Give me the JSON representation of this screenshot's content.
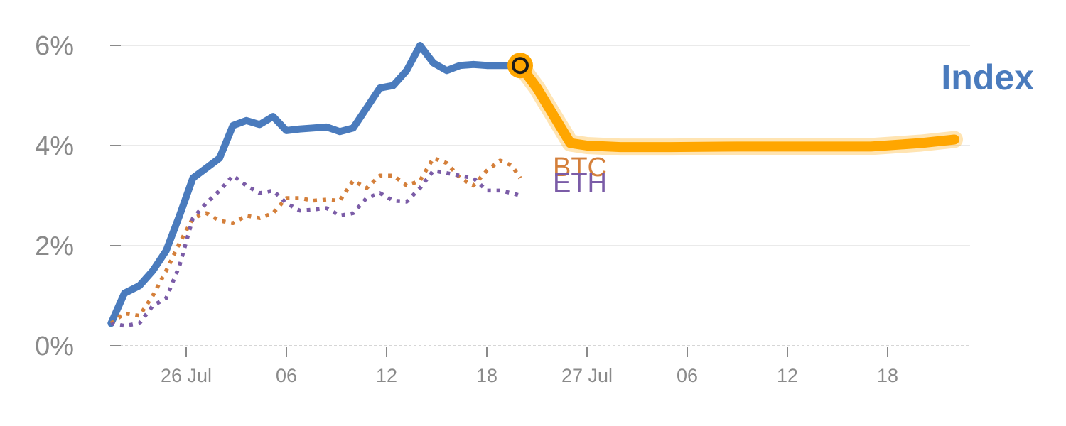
{
  "chart_data": {
    "type": "line",
    "title": "",
    "xlabel": "",
    "ylabel": "",
    "ylim": [
      0,
      6
    ],
    "y_unit": "%",
    "grid": "horizontal",
    "y_ticks": [
      {
        "value": 0,
        "label": "0%"
      },
      {
        "value": 2,
        "label": "2%"
      },
      {
        "value": 4,
        "label": "4%"
      },
      {
        "value": 6,
        "label": "6%"
      }
    ],
    "x_ticks": [
      {
        "x": 3,
        "label": "26 Jul"
      },
      {
        "x": 9,
        "label": "06"
      },
      {
        "x": 15,
        "label": "12"
      },
      {
        "x": 21,
        "label": "18"
      },
      {
        "x": 27,
        "label": "27 Jul"
      },
      {
        "x": 33,
        "label": "06"
      },
      {
        "x": 39,
        "label": "12"
      },
      {
        "x": 45,
        "label": "18"
      }
    ],
    "series": [
      {
        "name": "Index",
        "style": "solid",
        "color": "#4a7bbd",
        "x": [
          -1.5,
          -0.7,
          0.2,
          1.0,
          1.8,
          2.6,
          3.4,
          4.2,
          5.0,
          5.8,
          6.6,
          7.4,
          8.2,
          9.0,
          9.8,
          10.6,
          11.4,
          12.2,
          13.0,
          13.8,
          14.6,
          15.4,
          16.2,
          17.0,
          17.8,
          18.6,
          19.4,
          20.2,
          21.0,
          21.8,
          22.5,
          23.0
        ],
        "y": [
          0.45,
          1.05,
          1.2,
          1.5,
          1.9,
          2.6,
          3.35,
          3.55,
          3.75,
          4.4,
          4.5,
          4.42,
          4.58,
          4.3,
          4.33,
          4.35,
          4.37,
          4.28,
          4.35,
          4.75,
          5.15,
          5.2,
          5.5,
          6.0,
          5.65,
          5.5,
          5.6,
          5.62,
          5.6,
          5.6,
          5.6,
          5.6
        ]
      },
      {
        "name": "BTC",
        "style": "dotted",
        "color": "#d47f3a",
        "x": [
          -1.5,
          -0.7,
          0.2,
          1.0,
          1.8,
          2.6,
          3.4,
          4.2,
          5.0,
          5.8,
          6.6,
          7.4,
          8.2,
          9.0,
          9.8,
          10.6,
          11.4,
          12.2,
          13.0,
          13.8,
          14.6,
          15.4,
          16.2,
          17.0,
          17.8,
          18.6,
          19.4,
          20.2,
          21.0,
          21.8,
          22.5,
          23.0
        ],
        "y": [
          0.45,
          0.65,
          0.6,
          1.0,
          1.5,
          2.05,
          2.55,
          2.65,
          2.5,
          2.45,
          2.6,
          2.55,
          2.65,
          2.95,
          2.95,
          2.9,
          2.92,
          2.9,
          3.3,
          3.15,
          3.4,
          3.4,
          3.2,
          3.3,
          3.75,
          3.65,
          3.35,
          3.2,
          3.5,
          3.7,
          3.6,
          3.35
        ]
      },
      {
        "name": "ETH",
        "style": "dotted",
        "color": "#7b5ca7",
        "x": [
          -1.5,
          -0.7,
          0.2,
          1.0,
          1.8,
          2.6,
          3.4,
          4.2,
          5.0,
          5.8,
          6.6,
          7.4,
          8.2,
          9.0,
          9.8,
          10.6,
          11.4,
          12.2,
          13.0,
          13.8,
          14.6,
          15.4,
          16.2,
          17.0,
          17.8,
          18.6,
          19.4,
          20.2,
          21.0,
          21.8,
          22.5,
          23.0
        ],
        "y": [
          0.45,
          0.4,
          0.45,
          0.8,
          0.95,
          1.6,
          2.55,
          2.85,
          3.1,
          3.4,
          3.2,
          3.05,
          3.1,
          2.85,
          2.7,
          2.72,
          2.75,
          2.6,
          2.65,
          2.95,
          3.05,
          2.9,
          2.88,
          3.15,
          3.5,
          3.45,
          3.4,
          3.35,
          3.1,
          3.1,
          3.05,
          3.0
        ]
      },
      {
        "name": "Index",
        "style": "highlight",
        "color": "#ffa600",
        "x": [
          23.0,
          24.0,
          25.0,
          26.0,
          27.0,
          29.0,
          32.0,
          36.0,
          40.0,
          44.0,
          47.0,
          49.0
        ],
        "y": [
          5.6,
          5.15,
          4.6,
          4.05,
          4.0,
          3.97,
          3.97,
          3.98,
          3.98,
          3.98,
          4.05,
          4.12
        ]
      }
    ],
    "highlight_point": {
      "x": 23.0,
      "y": 5.6
    },
    "labels": {
      "index": "Index",
      "btc": "BTC",
      "eth": "ETH"
    },
    "colors": {
      "index": "#4a7bbd",
      "highlight": "#ffa600",
      "btc": "#d47f3a",
      "eth": "#7b5ca7",
      "grid": "#e3e3e3",
      "axis": "#8a8a8a"
    }
  }
}
